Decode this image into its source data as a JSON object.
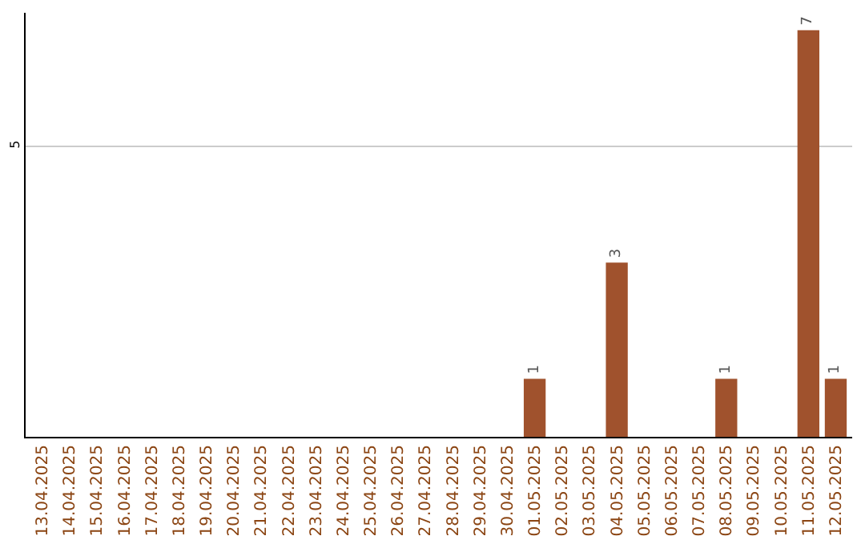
{
  "chart_data": {
    "type": "bar",
    "categories": [
      "13.04.2025",
      "14.04.2025",
      "15.04.2025",
      "16.04.2025",
      "17.04.2025",
      "18.04.2025",
      "19.04.2025",
      "20.04.2025",
      "21.04.2025",
      "22.04.2025",
      "23.04.2025",
      "24.04.2025",
      "25.04.2025",
      "26.04.2025",
      "27.04.2025",
      "28.04.2025",
      "29.04.2025",
      "30.04.2025",
      "01.05.2025",
      "02.05.2025",
      "03.05.2025",
      "04.05.2025",
      "05.05.2025",
      "06.05.2025",
      "07.05.2025",
      "08.05.2025",
      "09.05.2025",
      "10.05.2025",
      "11.05.2025",
      "12.05.2025"
    ],
    "values": [
      null,
      null,
      null,
      null,
      null,
      null,
      null,
      null,
      null,
      null,
      null,
      null,
      null,
      null,
      null,
      null,
      null,
      null,
      1,
      null,
      null,
      3,
      null,
      null,
      null,
      1,
      null,
      null,
      7,
      1
    ],
    "color": "#a0522d",
    "ylim": [
      0,
      7.3
    ],
    "yticks": [
      5
    ],
    "grid": "y",
    "data_labels": true,
    "legend": false
  }
}
